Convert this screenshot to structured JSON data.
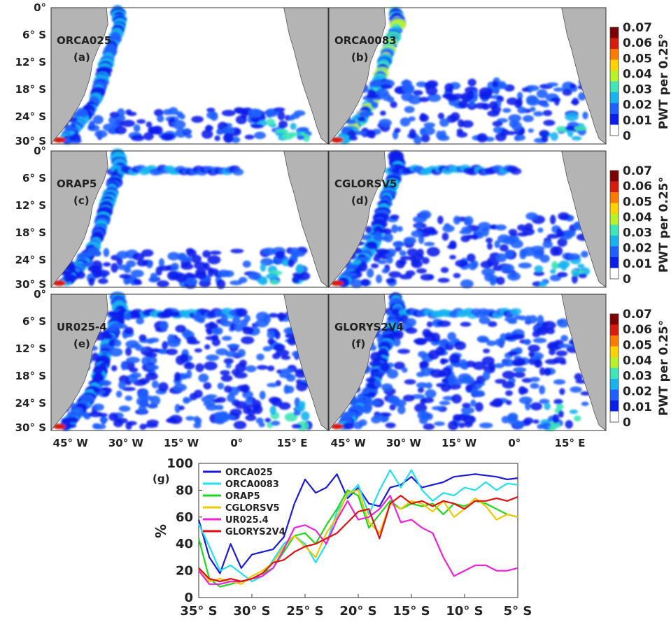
{
  "map_panels": [
    {
      "model": "ORCA025",
      "tag": "(a)"
    },
    {
      "model": "ORCA0083",
      "tag": "(b)"
    },
    {
      "model": "ORAP5",
      "tag": "(c)"
    },
    {
      "model": "CGLORSV5",
      "tag": "(d)"
    },
    {
      "model": "UR025-4",
      "tag": "(e)"
    },
    {
      "model": "GLORYS2V4",
      "tag": "(f)"
    }
  ],
  "map_lat_ticks": [
    "0°",
    "6° S",
    "12° S",
    "18° S",
    "24° S",
    "30° S"
  ],
  "map_lon_ticks": [
    "45° W",
    "30° W",
    "15° W",
    "0°",
    "15° E"
  ],
  "colorbar": {
    "label": "PWT per 0.25°",
    "ticks": [
      "0.07",
      "0.06",
      "0.05",
      "0.04",
      "0.03",
      "0.02",
      "0.01",
      "0"
    ],
    "colors": [
      "#7f0000",
      "#d81c0c",
      "#ff7a00",
      "#ffd200",
      "#b8f22a",
      "#3fe6b8",
      "#19b4f0",
      "#1f5fff",
      "#0a1eea",
      "#ffffff"
    ]
  },
  "chart_data": {
    "type": "line",
    "panel_tag": "(g)",
    "ylabel": "%",
    "xlabel": "",
    "ylim": [
      0,
      100
    ],
    "xlim": [
      -35,
      -5
    ],
    "x_ticks": [
      "35° S",
      "30° S",
      "25° S",
      "20° S",
      "15° S",
      "10° S",
      "5° S"
    ],
    "y_ticks": [
      "0",
      "20",
      "40",
      "60",
      "80",
      "100"
    ],
    "x": [
      -35,
      -34,
      -33,
      -32,
      -31,
      -30,
      -29,
      -28,
      -27,
      -26,
      -25,
      -24,
      -23,
      -22,
      -21,
      -20,
      -19,
      -18,
      -17,
      -16,
      -15,
      -14,
      -13,
      -12,
      -11,
      -10,
      -9,
      -8,
      -7,
      -6,
      -5
    ],
    "series": [
      {
        "name": "ORCA025",
        "color": "#1a1ad8",
        "values": [
          58,
          30,
          18,
          40,
          22,
          32,
          34,
          36,
          45,
          70,
          88,
          78,
          82,
          92,
          74,
          82,
          70,
          68,
          82,
          84,
          90,
          82,
          84,
          86,
          90,
          91,
          92,
          91,
          90,
          88,
          89
        ]
      },
      {
        "name": "ORCA0083",
        "color": "#22e0f0",
        "values": [
          55,
          38,
          20,
          24,
          18,
          12,
          16,
          28,
          40,
          46,
          40,
          26,
          40,
          64,
          76,
          84,
          62,
          80,
          95,
          82,
          95,
          80,
          72,
          78,
          76,
          82,
          80,
          86,
          80,
          85,
          84
        ]
      },
      {
        "name": "ORAP5",
        "color": "#1ed81e",
        "values": [
          44,
          14,
          8,
          10,
          12,
          14,
          18,
          22,
          34,
          46,
          48,
          40,
          54,
          66,
          80,
          76,
          52,
          62,
          72,
          66,
          70,
          68,
          70,
          62,
          70,
          68,
          72,
          70,
          66,
          62,
          60
        ]
      },
      {
        "name": "CGLORSV5",
        "color": "#f0c800",
        "values": [
          22,
          12,
          14,
          12,
          10,
          16,
          20,
          26,
          38,
          46,
          38,
          30,
          48,
          60,
          78,
          80,
          56,
          48,
          70,
          66,
          72,
          70,
          64,
          72,
          60,
          66,
          74,
          68,
          58,
          62,
          60
        ]
      },
      {
        "name": "UR025.4",
        "color": "#ee22dd",
        "values": [
          20,
          10,
          10,
          12,
          12,
          14,
          16,
          22,
          36,
          52,
          54,
          50,
          40,
          58,
          72,
          58,
          60,
          66,
          76,
          56,
          58,
          52,
          48,
          30,
          16,
          20,
          24,
          24,
          20,
          20,
          22
        ]
      },
      {
        "name": "GLORYS2V4",
        "color": "#e01010",
        "values": [
          22,
          14,
          12,
          14,
          12,
          14,
          18,
          26,
          28,
          34,
          38,
          40,
          44,
          48,
          56,
          64,
          66,
          44,
          70,
          76,
          70,
          72,
          68,
          72,
          70,
          66,
          72,
          72,
          74,
          72,
          75
        ]
      }
    ]
  }
}
